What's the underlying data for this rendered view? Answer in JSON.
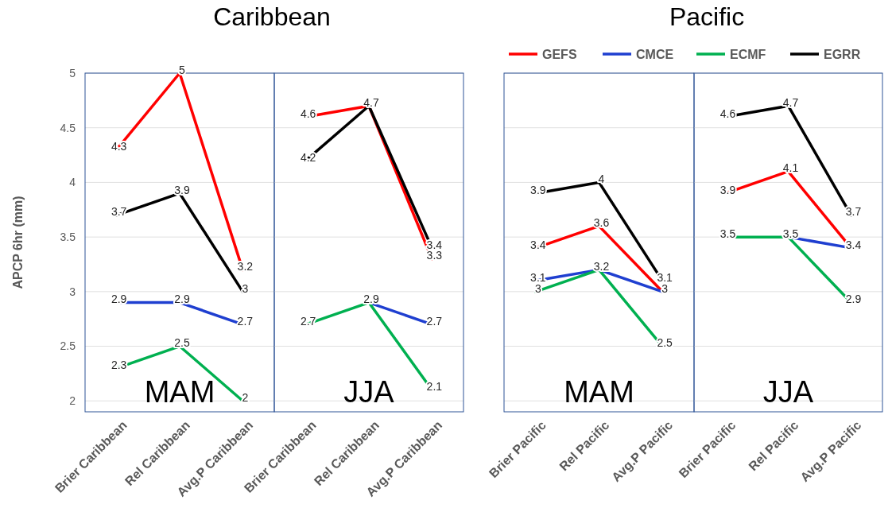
{
  "chart_data": [
    {
      "type": "line",
      "title": "Caribbean",
      "ylabel": "APCP 6hr (mm)",
      "categories": [
        "Brier Caribbean",
        "Rel Caribbean",
        "Avg.P Caribbean"
      ],
      "annotations": [
        "MAM"
      ],
      "ylim": [
        1.9,
        5
      ],
      "yticks": [
        2,
        2.5,
        3,
        3.5,
        4,
        4.5,
        5
      ],
      "grid": "y",
      "data_labels": true,
      "marker": "none",
      "legend": false,
      "series": [
        {
          "color": "#ff0000",
          "values": [
            4.3,
            5,
            3.2
          ]
        },
        {
          "color": "#1f3fd0",
          "values": [
            2.9,
            2.9,
            2.7
          ]
        },
        {
          "color": "#00b050",
          "values": [
            2.3,
            2.5,
            2
          ]
        },
        {
          "color": "#000000",
          "values": [
            3.7,
            3.9,
            3
          ]
        }
      ]
    },
    {
      "type": "line",
      "categories": [
        "Brier Caribbean",
        "Rel Caribbean",
        "Avg.P Caribbean"
      ],
      "annotations": [
        "JJA"
      ],
      "ylim": [
        1.9,
        5
      ],
      "yticks": [
        2,
        2.5,
        3,
        3.5,
        4,
        4.5,
        5
      ],
      "tick_labels": "x",
      "grid": "y",
      "data_labels": true,
      "marker": "none",
      "legend": false,
      "series": [
        {
          "color": "#ff0000",
          "values": [
            4.6,
            4.7,
            3.3
          ]
        },
        {
          "color": "#1f3fd0",
          "values": [
            null,
            2.9,
            2.7
          ]
        },
        {
          "color": "#00b050",
          "values": [
            2.7,
            2.9,
            2.1
          ],
          "value_labels": [
            "2.7",
            null,
            "2.1"
          ]
        },
        {
          "color": "#000000",
          "values": [
            4.2,
            4.7,
            3.4
          ],
          "value_labels": [
            "4.2",
            null,
            "3.4"
          ]
        }
      ]
    },
    {
      "type": "line",
      "categories": [
        "Brier Pacific",
        "Rel Pacific",
        "Avg.P Pacific"
      ],
      "annotations": [
        "MAM"
      ],
      "ylim": [
        1.9,
        5
      ],
      "yticks": [
        2,
        2.5,
        3,
        3.5,
        4,
        4.5,
        5
      ],
      "tick_labels": "x",
      "grid": "y",
      "data_labels": true,
      "marker": "none",
      "legend": false,
      "series": [
        {
          "color": "#ff0000",
          "values": [
            3.4,
            3.6,
            3
          ]
        },
        {
          "color": "#1f3fd0",
          "values": [
            3.1,
            3.2,
            3
          ],
          "value_labels": [
            "3.1",
            "3.2",
            null
          ]
        },
        {
          "color": "#00b050",
          "values": [
            3,
            3.2,
            2.5
          ],
          "value_labels": [
            "3",
            null,
            "2.5"
          ]
        },
        {
          "color": "#000000",
          "values": [
            3.9,
            4,
            3.1
          ]
        }
      ]
    },
    {
      "type": "line",
      "title": "Pacific",
      "categories": [
        "Brier Pacific",
        "Rel Pacific",
        "Avg.P Pacific"
      ],
      "annotations": [
        "JJA"
      ],
      "ylim": [
        1.9,
        5
      ],
      "yticks": [
        2,
        2.5,
        3,
        3.5,
        4,
        4.5,
        5
      ],
      "tick_labels": "x",
      "grid": "y",
      "data_labels": true,
      "marker": "none",
      "legend": "top",
      "series": [
        {
          "name": "GEFS",
          "color": "#ff0000",
          "values": [
            3.9,
            4.1,
            3.4
          ]
        },
        {
          "name": "CMCE",
          "color": "#1f3fd0",
          "values": [
            null,
            3.5,
            3.4
          ],
          "value_labels": [
            null,
            "3.5",
            null
          ]
        },
        {
          "name": "ECMF",
          "color": "#00b050",
          "values": [
            3.5,
            3.5,
            2.9
          ],
          "value_labels": [
            "3.5",
            null,
            "2.9"
          ]
        },
        {
          "name": "EGRR",
          "color": "#000000",
          "values": [
            4.6,
            4.7,
            3.7
          ]
        }
      ]
    }
  ]
}
